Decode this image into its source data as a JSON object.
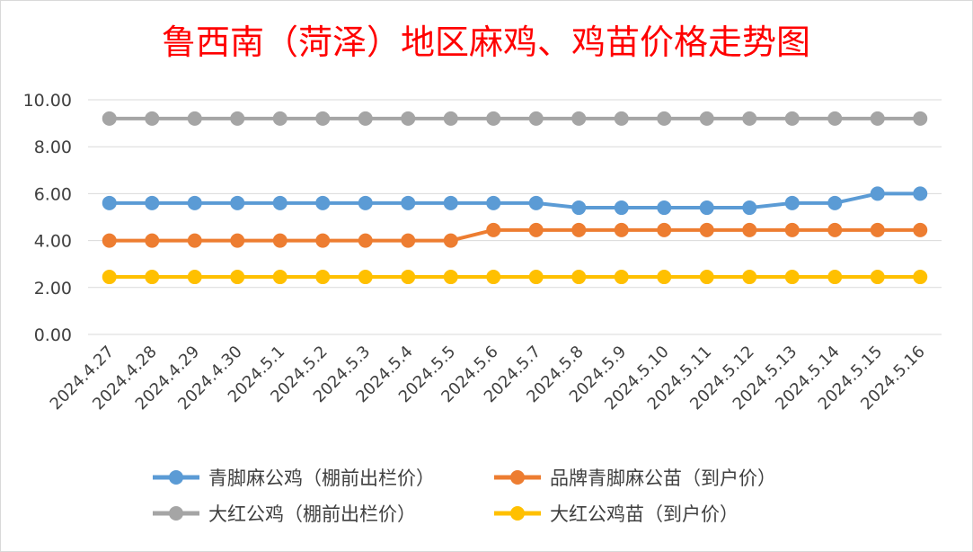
{
  "chart_data": {
    "type": "line",
    "title": "鲁西南（菏泽）地区麻鸡、鸡苗价格走势图",
    "xlabel": "",
    "ylabel": "",
    "categories": [
      "2024.4.27",
      "2024.4.28",
      "2024.4.29",
      "2024.4.30",
      "2024.5.1",
      "2024.5.2",
      "2024.5.3",
      "2024.5.4",
      "2024.5.5",
      "2024.5.6",
      "2024.5.7",
      "2024.5.8",
      "2024.5.9",
      "2024.5.10",
      "2024.5.11",
      "2024.5.12",
      "2024.5.13",
      "2024.5.14",
      "2024.5.15",
      "2024.5.16"
    ],
    "ylim": [
      0,
      10
    ],
    "yticks": [
      "0.00",
      "2.00",
      "4.00",
      "6.00",
      "8.00",
      "10.00"
    ],
    "grid": "horizontal",
    "legend_position": "bottom",
    "series": [
      {
        "name": "青脚麻公鸡（棚前出栏价）",
        "color": "#5b9bd5",
        "values": [
          5.6,
          5.6,
          5.6,
          5.6,
          5.6,
          5.6,
          5.6,
          5.6,
          5.6,
          5.6,
          5.6,
          5.4,
          5.4,
          5.4,
          5.4,
          5.4,
          5.6,
          5.6,
          6.0,
          6.0
        ]
      },
      {
        "name": "品牌青脚麻公苗（到户价）",
        "color": "#ed7d31",
        "values": [
          4.0,
          4.0,
          4.0,
          4.0,
          4.0,
          4.0,
          4.0,
          4.0,
          4.0,
          4.45,
          4.45,
          4.45,
          4.45,
          4.45,
          4.45,
          4.45,
          4.45,
          4.45,
          4.45,
          4.45
        ]
      },
      {
        "name": "大红公鸡（棚前出栏价）",
        "color": "#a5a5a5",
        "values": [
          9.2,
          9.2,
          9.2,
          9.2,
          9.2,
          9.2,
          9.2,
          9.2,
          9.2,
          9.2,
          9.2,
          9.2,
          9.2,
          9.2,
          9.2,
          9.2,
          9.2,
          9.2,
          9.2,
          9.2
        ]
      },
      {
        "name": "大红公鸡苗（到户价）",
        "color": "#ffc000",
        "values": [
          2.45,
          2.45,
          2.45,
          2.45,
          2.45,
          2.45,
          2.45,
          2.45,
          2.45,
          2.45,
          2.45,
          2.45,
          2.45,
          2.45,
          2.45,
          2.45,
          2.45,
          2.45,
          2.45,
          2.45
        ]
      }
    ]
  }
}
